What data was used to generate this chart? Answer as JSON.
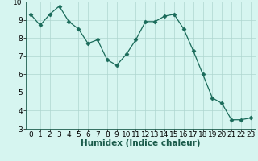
{
  "x": [
    0,
    1,
    2,
    3,
    4,
    5,
    6,
    7,
    8,
    9,
    10,
    11,
    12,
    13,
    14,
    15,
    16,
    17,
    18,
    19,
    20,
    21,
    22,
    23
  ],
  "y": [
    9.3,
    8.7,
    9.3,
    9.75,
    8.9,
    8.5,
    7.7,
    7.9,
    6.8,
    6.5,
    7.1,
    7.9,
    8.9,
    8.9,
    9.2,
    9.3,
    8.5,
    7.3,
    6.0,
    4.7,
    4.4,
    3.5,
    3.5,
    3.6
  ],
  "line_color": "#1a6b5a",
  "marker": "D",
  "marker_size": 2.5,
  "bg_color": "#d6f5f0",
  "grid_color": "#aed6d0",
  "xlabel": "Humidex (Indice chaleur)",
  "xlim": [
    -0.5,
    23.5
  ],
  "ylim": [
    3,
    10
  ],
  "yticks": [
    3,
    4,
    5,
    6,
    7,
    8,
    9,
    10
  ],
  "xticks": [
    0,
    1,
    2,
    3,
    4,
    5,
    6,
    7,
    8,
    9,
    10,
    11,
    12,
    13,
    14,
    15,
    16,
    17,
    18,
    19,
    20,
    21,
    22,
    23
  ],
  "xlabel_fontsize": 7.5,
  "tick_fontsize": 6.5,
  "xlabel_color": "#1a5a4a"
}
